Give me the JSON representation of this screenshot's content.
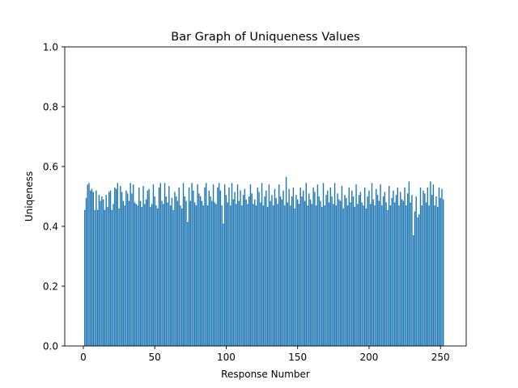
{
  "chart_data": {
    "type": "bar",
    "title": "Bar Graph of Uniqueness Values",
    "xlabel": "Response Number",
    "ylabel": "Uniqeness",
    "xlim": [
      -13,
      268
    ],
    "ylim": [
      0,
      1.0
    ],
    "xticks": [
      0,
      50,
      100,
      150,
      200,
      250
    ],
    "yticks": [
      0.0,
      0.2,
      0.4,
      0.6,
      0.8,
      1.0
    ],
    "xtick_labels": [
      "0",
      "50",
      "100",
      "150",
      "200",
      "250"
    ],
    "ytick_labels": [
      "0.0",
      "0.2",
      "0.4",
      "0.6",
      "0.8",
      "1.0"
    ],
    "bar_color": "#1f77b4",
    "grid": false,
    "x_start": 1,
    "values": [
      0.455,
      0.495,
      0.54,
      0.545,
      0.52,
      0.525,
      0.515,
      0.455,
      0.52,
      0.455,
      0.505,
      0.485,
      0.5,
      0.49,
      0.455,
      0.505,
      0.465,
      0.515,
      0.52,
      0.455,
      0.475,
      0.53,
      0.525,
      0.545,
      0.46,
      0.535,
      0.515,
      0.485,
      0.47,
      0.52,
      0.51,
      0.485,
      0.545,
      0.51,
      0.54,
      0.48,
      0.475,
      0.47,
      0.53,
      0.485,
      0.465,
      0.535,
      0.475,
      0.49,
      0.52,
      0.525,
      0.465,
      0.475,
      0.54,
      0.5,
      0.47,
      0.46,
      0.53,
      0.545,
      0.485,
      0.475,
      0.545,
      0.5,
      0.48,
      0.535,
      0.47,
      0.495,
      0.455,
      0.515,
      0.5,
      0.485,
      0.53,
      0.47,
      0.46,
      0.545,
      0.5,
      0.485,
      0.415,
      0.53,
      0.485,
      0.545,
      0.52,
      0.48,
      0.47,
      0.54,
      0.51,
      0.5,
      0.485,
      0.47,
      0.53,
      0.545,
      0.47,
      0.52,
      0.5,
      0.485,
      0.54,
      0.48,
      0.475,
      0.53,
      0.545,
      0.52,
      0.47,
      0.41,
      0.54,
      0.505,
      0.48,
      0.53,
      0.47,
      0.545,
      0.49,
      0.515,
      0.475,
      0.54,
      0.485,
      0.52,
      0.47,
      0.505,
      0.525,
      0.49,
      0.475,
      0.5,
      0.54,
      0.51,
      0.475,
      0.49,
      0.47,
      0.53,
      0.515,
      0.48,
      0.545,
      0.47,
      0.5,
      0.52,
      0.465,
      0.54,
      0.485,
      0.505,
      0.47,
      0.525,
      0.495,
      0.475,
      0.54,
      0.5,
      0.49,
      0.52,
      0.47,
      0.565,
      0.48,
      0.525,
      0.47,
      0.5,
      0.53,
      0.46,
      0.505,
      0.49,
      0.475,
      0.53,
      0.5,
      0.52,
      0.485,
      0.545,
      0.47,
      0.51,
      0.49,
      0.475,
      0.53,
      0.515,
      0.47,
      0.54,
      0.5,
      0.485,
      0.465,
      0.545,
      0.47,
      0.505,
      0.52,
      0.48,
      0.53,
      0.5,
      0.475,
      0.545,
      0.47,
      0.51,
      0.49,
      0.485,
      0.535,
      0.46,
      0.505,
      0.495,
      0.47,
      0.53,
      0.48,
      0.52,
      0.5,
      0.465,
      0.54,
      0.475,
      0.505,
      0.515,
      0.48,
      0.47,
      0.53,
      0.46,
      0.5,
      0.52,
      0.475,
      0.545,
      0.49,
      0.47,
      0.525,
      0.505,
      0.485,
      0.54,
      0.47,
      0.5,
      0.515,
      0.48,
      0.455,
      0.535,
      0.47,
      0.495,
      0.52,
      0.48,
      0.505,
      0.53,
      0.47,
      0.515,
      0.49,
      0.485,
      0.53,
      0.47,
      0.51,
      0.55,
      0.48,
      0.505,
      0.37,
      0.45,
      0.5,
      0.43,
      0.44,
      0.53,
      0.47,
      0.52,
      0.51,
      0.48,
      0.53,
      0.47,
      0.55,
      0.505,
      0.54,
      0.47,
      0.5,
      0.465,
      0.53,
      0.495,
      0.525,
      0.49
    ]
  }
}
